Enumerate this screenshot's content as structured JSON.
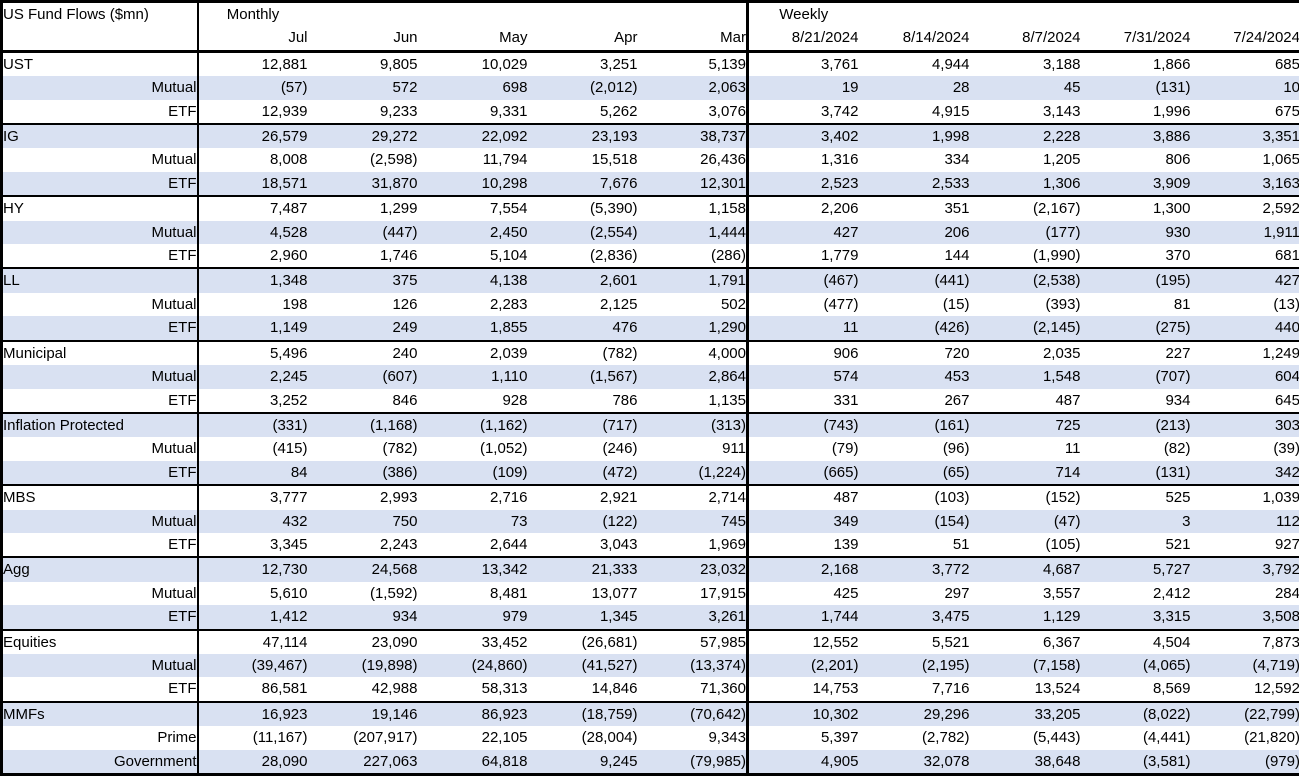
{
  "title": "US Fund Flows ($mn)",
  "header": {
    "monthly_label": "Monthly",
    "weekly_label": "Weekly",
    "monthly_columns": [
      "Jul",
      "Jun",
      "May",
      "Apr",
      "Mar"
    ],
    "weekly_columns": [
      "8/21/2024",
      "8/14/2024",
      "8/7/2024",
      "7/31/2024",
      "7/24/2024"
    ]
  },
  "colors": {
    "band": "#D9E1F2",
    "border": "#000000",
    "text": "#000000",
    "background": "#FFFFFF"
  },
  "format_note": "negative values shown in parentheses",
  "chart_data": {
    "type": "table",
    "title": "US Fund Flows ($mn)",
    "column_groups": [
      "Monthly",
      "Weekly"
    ],
    "columns": [
      "Jul",
      "Jun",
      "May",
      "Apr",
      "Mar",
      "8/21/2024",
      "8/14/2024",
      "8/7/2024",
      "7/31/2024",
      "7/24/2024"
    ],
    "groups": [
      {
        "name": "UST",
        "rows": [
          {
            "label": "UST",
            "section": true,
            "values": [
              12881,
              9805,
              10029,
              3251,
              5139,
              3761,
              4944,
              3188,
              1866,
              685
            ]
          },
          {
            "label": "Mutual",
            "section": false,
            "values": [
              -57,
              572,
              698,
              -2012,
              2063,
              19,
              28,
              45,
              -131,
              10
            ]
          },
          {
            "label": "ETF",
            "section": false,
            "values": [
              12939,
              9233,
              9331,
              5262,
              3076,
              3742,
              4915,
              3143,
              1996,
              675
            ]
          }
        ]
      },
      {
        "name": "IG",
        "rows": [
          {
            "label": "IG",
            "section": true,
            "values": [
              26579,
              29272,
              22092,
              23193,
              38737,
              3402,
              1998,
              2228,
              3886,
              3351
            ]
          },
          {
            "label": "Mutual",
            "section": false,
            "values": [
              8008,
              -2598,
              11794,
              15518,
              26436,
              1316,
              334,
              1205,
              806,
              1065
            ]
          },
          {
            "label": "ETF",
            "section": false,
            "values": [
              18571,
              31870,
              10298,
              7676,
              12301,
              2523,
              2533,
              1306,
              3909,
              3163
            ]
          }
        ]
      },
      {
        "name": "HY",
        "rows": [
          {
            "label": "HY",
            "section": true,
            "values": [
              7487,
              1299,
              7554,
              -5390,
              1158,
              2206,
              351,
              -2167,
              1300,
              2592
            ]
          },
          {
            "label": "Mutual",
            "section": false,
            "values": [
              4528,
              -447,
              2450,
              -2554,
              1444,
              427,
              206,
              -177,
              930,
              1911
            ]
          },
          {
            "label": "ETF",
            "section": false,
            "values": [
              2960,
              1746,
              5104,
              -2836,
              -286,
              1779,
              144,
              -1990,
              370,
              681
            ]
          }
        ]
      },
      {
        "name": "LL",
        "rows": [
          {
            "label": "LL",
            "section": true,
            "values": [
              1348,
              375,
              4138,
              2601,
              1791,
              -467,
              -441,
              -2538,
              -195,
              427
            ]
          },
          {
            "label": "Mutual",
            "section": false,
            "values": [
              198,
              126,
              2283,
              2125,
              502,
              -477,
              -15,
              -393,
              81,
              -13
            ]
          },
          {
            "label": "ETF",
            "section": false,
            "values": [
              1149,
              249,
              1855,
              476,
              1290,
              11,
              -426,
              -2145,
              -275,
              440
            ]
          }
        ]
      },
      {
        "name": "Municipal",
        "rows": [
          {
            "label": "Municipal",
            "section": true,
            "values": [
              5496,
              240,
              2039,
              -782,
              4000,
              906,
              720,
              2035,
              227,
              1249
            ]
          },
          {
            "label": "Mutual",
            "section": false,
            "values": [
              2245,
              -607,
              1110,
              -1567,
              2864,
              574,
              453,
              1548,
              -707,
              604
            ]
          },
          {
            "label": "ETF",
            "section": false,
            "values": [
              3252,
              846,
              928,
              786,
              1135,
              331,
              267,
              487,
              934,
              645
            ]
          }
        ]
      },
      {
        "name": "Inflation Protected",
        "rows": [
          {
            "label": "Inflation Protected",
            "section": true,
            "values": [
              -331,
              -1168,
              -1162,
              -717,
              -313,
              -743,
              -161,
              725,
              -213,
              303
            ]
          },
          {
            "label": "Mutual",
            "section": false,
            "values": [
              -415,
              -782,
              -1052,
              -246,
              911,
              -79,
              -96,
              11,
              -82,
              -39
            ]
          },
          {
            "label": "ETF",
            "section": false,
            "values": [
              84,
              -386,
              -109,
              -472,
              -1224,
              -665,
              -65,
              714,
              -131,
              342
            ]
          }
        ]
      },
      {
        "name": "MBS",
        "rows": [
          {
            "label": "MBS",
            "section": true,
            "values": [
              3777,
              2993,
              2716,
              2921,
              2714,
              487,
              -103,
              -152,
              525,
              1039
            ]
          },
          {
            "label": "Mutual",
            "section": false,
            "values": [
              432,
              750,
              73,
              -122,
              745,
              349,
              -154,
              -47,
              3,
              112
            ]
          },
          {
            "label": "ETF",
            "section": false,
            "values": [
              3345,
              2243,
              2644,
              3043,
              1969,
              139,
              51,
              -105,
              521,
              927
            ]
          }
        ]
      },
      {
        "name": "Agg",
        "rows": [
          {
            "label": "Agg",
            "section": true,
            "values": [
              12730,
              24568,
              13342,
              21333,
              23032,
              2168,
              3772,
              4687,
              5727,
              3792
            ]
          },
          {
            "label": "Mutual",
            "section": false,
            "values": [
              5610,
              -1592,
              8481,
              13077,
              17915,
              425,
              297,
              3557,
              2412,
              284
            ]
          },
          {
            "label": "ETF",
            "section": false,
            "values": [
              1412,
              934,
              979,
              1345,
              3261,
              1744,
              3475,
              1129,
              3315,
              3508
            ]
          }
        ]
      },
      {
        "name": "Equities",
        "rows": [
          {
            "label": "Equities",
            "section": true,
            "values": [
              47114,
              23090,
              33452,
              -26681,
              57985,
              12552,
              5521,
              6367,
              4504,
              7873
            ]
          },
          {
            "label": "Mutual",
            "section": false,
            "values": [
              -39467,
              -19898,
              -24860,
              -41527,
              -13374,
              -2201,
              -2195,
              -7158,
              -4065,
              -4719
            ]
          },
          {
            "label": "ETF",
            "section": false,
            "values": [
              86581,
              42988,
              58313,
              14846,
              71360,
              14753,
              7716,
              13524,
              8569,
              12592
            ]
          }
        ]
      },
      {
        "name": "MMFs",
        "rows": [
          {
            "label": "MMFs",
            "section": true,
            "values": [
              16923,
              19146,
              86923,
              -18759,
              -70642,
              10302,
              29296,
              33205,
              -8022,
              -22799
            ]
          },
          {
            "label": "Prime",
            "section": false,
            "values": [
              -11167,
              -207917,
              22105,
              -28004,
              9343,
              5397,
              -2782,
              -5443,
              -4441,
              -21820
            ]
          },
          {
            "label": "Government",
            "section": false,
            "values": [
              28090,
              227063,
              64818,
              9245,
              -79985,
              4905,
              32078,
              38648,
              -3581,
              -979
            ]
          }
        ]
      }
    ]
  }
}
